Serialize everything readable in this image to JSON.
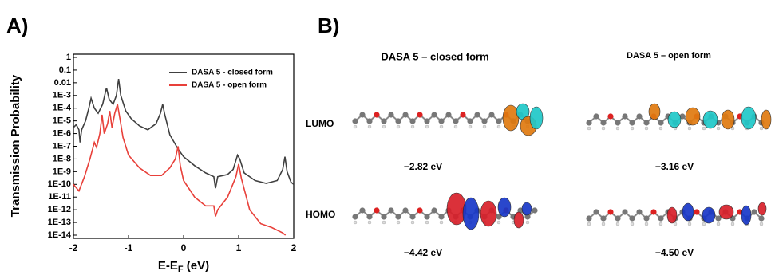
{
  "panel_labels": [
    "A)",
    "B)"
  ],
  "chart_data": {
    "type": "line",
    "ylabel": "Transmission Probability",
    "xlabel_parts": [
      "E-E",
      "F",
      " (eV)"
    ],
    "xlim": [
      -2,
      2
    ],
    "xticks": [
      -2,
      -1,
      0,
      1,
      2
    ],
    "ylim": [
      1e-14,
      1
    ],
    "log_y": true,
    "yticks": [
      1,
      0.1,
      0.01,
      {
        "value": 0.001,
        "label": "1E-3"
      },
      {
        "value": 0.0001,
        "label": "1E-4"
      },
      {
        "value": 1e-05,
        "label": "1E-5"
      },
      {
        "value": 1e-06,
        "label": "1E-6"
      },
      {
        "value": 1e-07,
        "label": "1E-7"
      },
      {
        "value": 1e-08,
        "label": "1E-8"
      },
      {
        "value": 1e-09,
        "label": "1E-9"
      },
      {
        "value": 1e-10,
        "label": "1E-10"
      },
      {
        "value": 1e-11,
        "label": "1E-11"
      },
      {
        "value": 1e-12,
        "label": "1E-12"
      },
      {
        "value": 1e-13,
        "label": "1E-13"
      },
      {
        "value": 1e-14,
        "label": "1E-14"
      }
    ],
    "legend": "upper right",
    "series": [
      {
        "name": "DASA 5 - closed form",
        "color": "#404040",
        "x": [
          -2,
          -1.95,
          -1.9,
          -1.88,
          -1.85,
          -1.78,
          -1.72,
          -1.68,
          -1.62,
          -1.55,
          -1.47,
          -1.4,
          -1.35,
          -1.28,
          -1.22,
          -1.18,
          -1.14,
          -1.05,
          -0.95,
          -0.8,
          -0.65,
          -0.5,
          -0.42,
          -0.38,
          -0.34,
          -0.25,
          -0.1,
          0,
          0.2,
          0.4,
          0.55,
          0.58,
          0.62,
          0.8,
          0.9,
          0.98,
          1.02,
          1.1,
          1.3,
          1.5,
          1.7,
          1.8,
          1.84,
          1.88,
          1.95,
          2
        ],
        "values": [
          3e-06,
          5e-06,
          2e-06,
          2e-07,
          2e-06,
          1e-05,
          0.0001,
          0.0006,
          0.0001,
          4e-05,
          0.0002,
          0.004,
          0.0005,
          0.0002,
          0.001,
          0.02,
          0.001,
          6e-05,
          1.5e-05,
          4e-06,
          2e-06,
          6e-06,
          4e-05,
          0.0002,
          3e-05,
          8e-07,
          6e-08,
          1.5e-08,
          3e-09,
          8e-10,
          4e-10,
          5e-11,
          4e-10,
          6e-10,
          1.5e-09,
          2e-08,
          1e-08,
          8e-10,
          2e-10,
          1.2e-10,
          2e-10,
          1.5e-09,
          1.5e-08,
          1e-09,
          1.5e-10,
          1e-10
        ]
      },
      {
        "name": "DASA 5 - open form",
        "color": "#e8403a",
        "x": [
          -2,
          -1.9,
          -1.8,
          -1.7,
          -1.62,
          -1.58,
          -1.52,
          -1.48,
          -1.44,
          -1.38,
          -1.34,
          -1.3,
          -1.25,
          -1.2,
          -1.15,
          -1.1,
          -1,
          -0.8,
          -0.6,
          -0.4,
          -0.25,
          -0.15,
          -0.1,
          -0.06,
          0,
          0.2,
          0.4,
          0.55,
          0.58,
          0.62,
          0.8,
          0.95,
          1,
          1.05,
          1.2,
          1.4,
          1.6,
          1.8,
          1.85
        ],
        "values": [
          1e-10,
          3e-11,
          4e-10,
          1e-08,
          2e-07,
          8e-08,
          1e-06,
          3e-05,
          1e-06,
          6e-06,
          6e-05,
          3e-06,
          4e-05,
          0.0002,
          1e-05,
          5e-07,
          2e-08,
          2e-09,
          5e-10,
          5e-10,
          2e-09,
          1e-08,
          1e-07,
          3e-09,
          2e-10,
          1e-11,
          2e-12,
          2e-12,
          3e-13,
          1e-12,
          1e-11,
          4e-10,
          4e-09,
          3e-10,
          1e-12,
          8e-14,
          4e-14,
          1.5e-14,
          1e-14
        ]
      }
    ]
  },
  "orbitals": {
    "columns": [
      "DASA 5 – closed form",
      "DASA 5 – open form"
    ],
    "rows": [
      "LUMO",
      "HOMO"
    ],
    "energies": [
      [
        "−2.82 eV",
        "−3.16 eV"
      ],
      [
        "−4.42 eV",
        "−4.50 eV"
      ]
    ]
  }
}
